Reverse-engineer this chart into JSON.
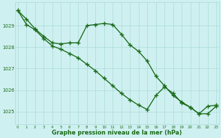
{
  "line1_x": [
    0,
    1,
    2,
    3,
    4,
    5,
    6,
    7,
    8,
    9,
    10,
    11,
    12,
    13,
    14,
    15,
    16,
    17,
    18,
    19,
    20,
    21,
    22,
    23
  ],
  "line1_y": [
    1029.7,
    1029.3,
    1028.85,
    1028.5,
    1028.2,
    1028.15,
    1028.2,
    1028.2,
    1029.0,
    1029.05,
    1029.1,
    1029.05,
    1028.6,
    1028.1,
    1027.8,
    1027.35,
    1026.65,
    1026.2,
    1025.75,
    1025.45,
    1025.2,
    1024.9,
    1024.9,
    1025.25
  ],
  "line2_x": [
    0,
    1,
    2,
    3,
    4,
    5,
    6,
    7,
    8,
    9,
    10,
    11,
    12,
    13,
    14,
    15,
    16,
    17,
    18,
    19,
    20,
    21,
    22,
    23
  ],
  "line2_y": [
    1029.7,
    1029.05,
    1028.8,
    1028.4,
    1028.05,
    1027.9,
    1027.7,
    1027.5,
    1027.2,
    1026.9,
    1026.55,
    1026.2,
    1025.85,
    1025.55,
    1025.3,
    1025.1,
    1025.75,
    1026.15,
    1025.85,
    1025.4,
    1025.2,
    1024.9,
    1025.25,
    1025.3
  ],
  "bg_color": "#cff0f0",
  "grid_color": "#aad8d8",
  "line_color": "#1a6b1a",
  "ylabel_values": [
    1025,
    1026,
    1027,
    1028,
    1029
  ],
  "xlabel_values": [
    0,
    1,
    2,
    3,
    4,
    5,
    6,
    7,
    8,
    9,
    10,
    11,
    12,
    13,
    14,
    15,
    16,
    17,
    18,
    19,
    20,
    21,
    22,
    23
  ],
  "ylim": [
    1024.4,
    1030.1
  ],
  "xlim": [
    -0.3,
    23.3
  ],
  "xlabel": "Graphe pression niveau de la mer (hPa)",
  "marker": "+",
  "markersize": 4,
  "linewidth": 1.0
}
